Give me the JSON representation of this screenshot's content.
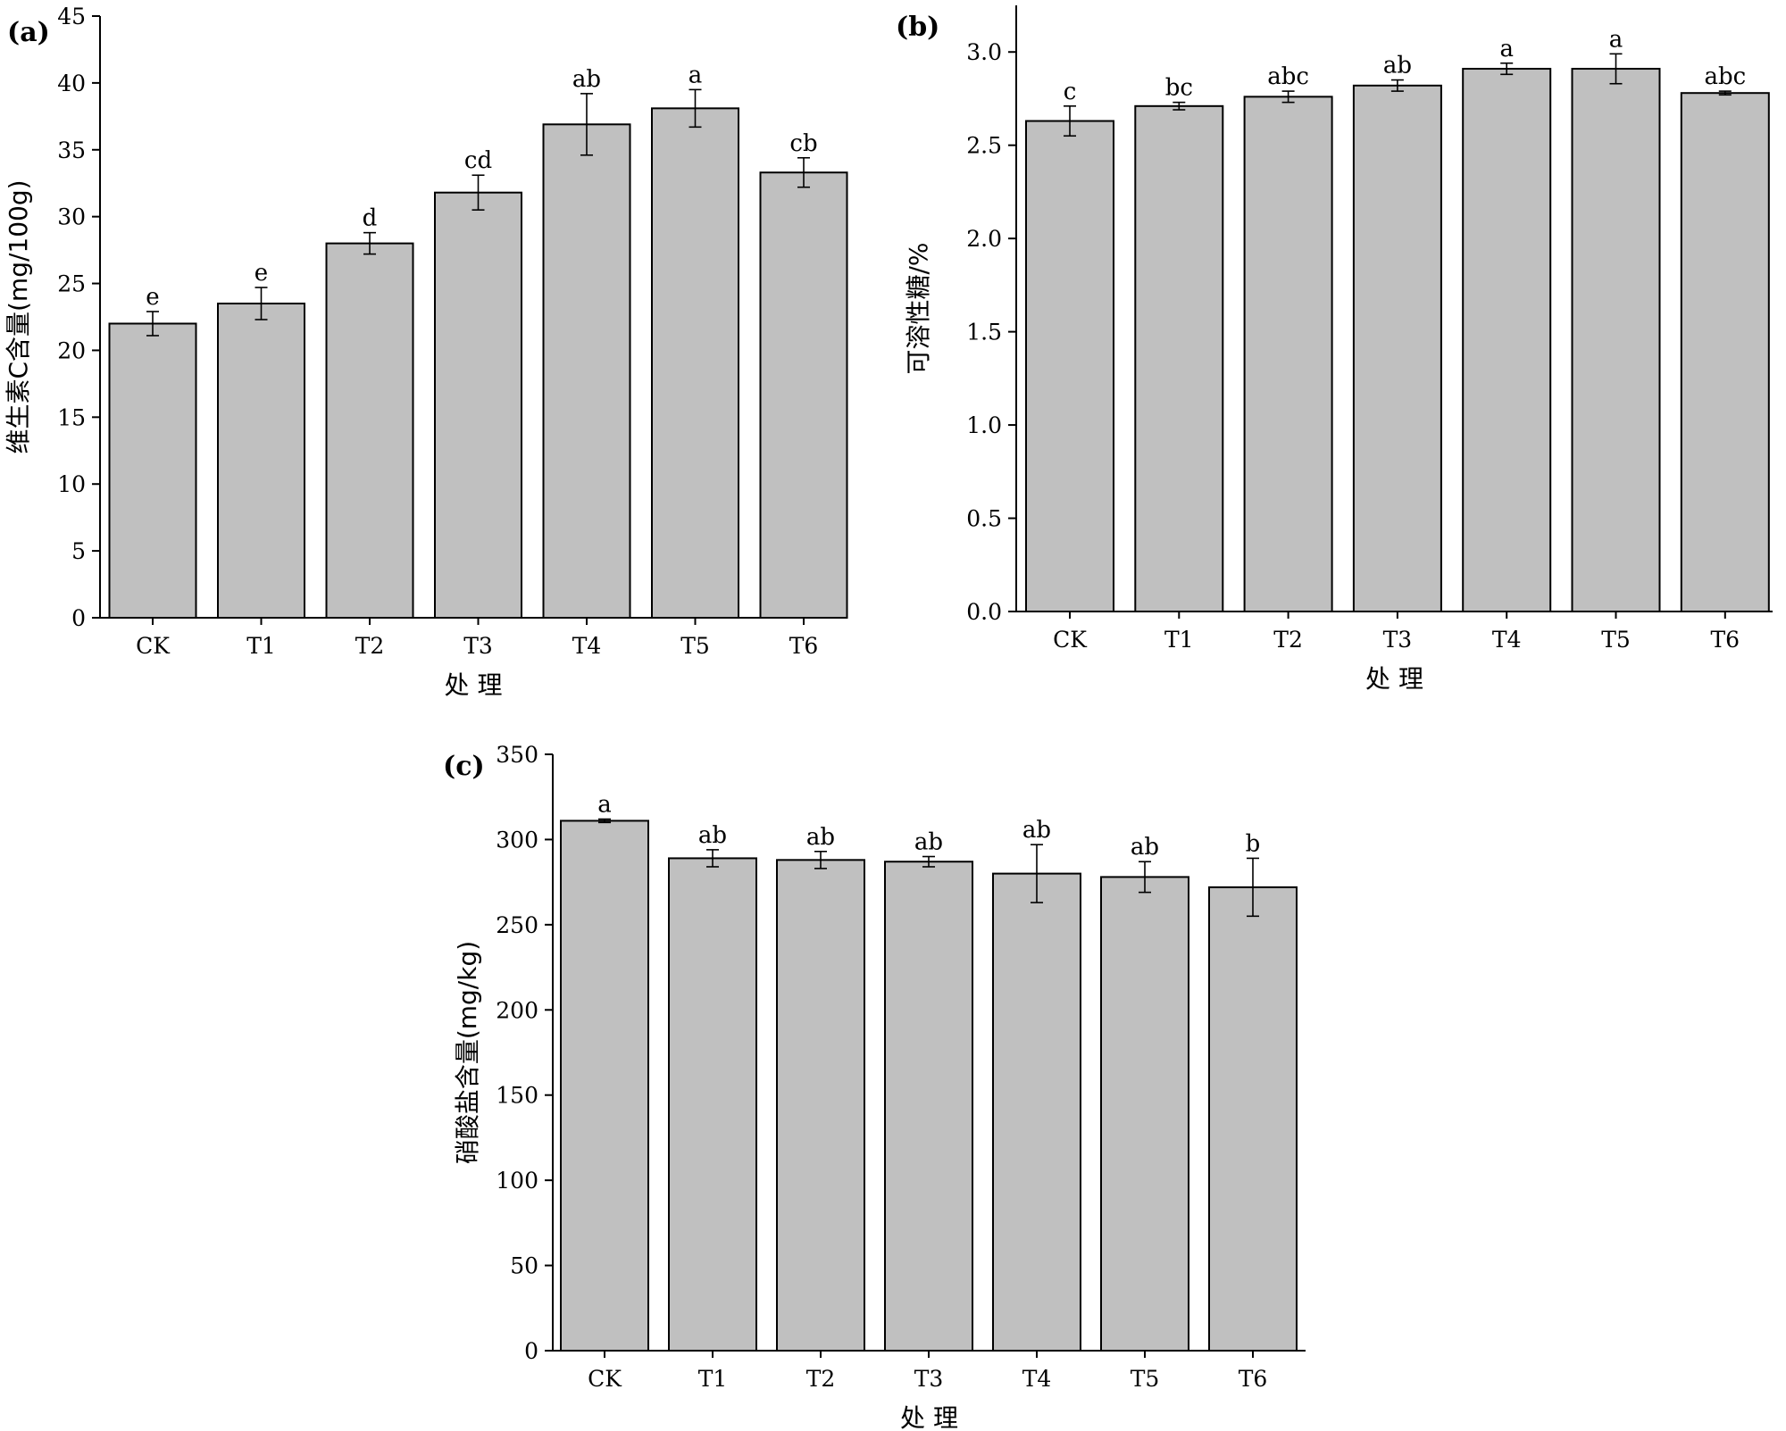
{
  "chart_data": [
    {
      "type": "bar",
      "panel_label": "(a)",
      "categories": [
        "CK",
        "T1",
        "T2",
        "T3",
        "T4",
        "T5",
        "T6"
      ],
      "values": [
        22.0,
        23.5,
        28.0,
        31.8,
        36.9,
        38.1,
        33.3
      ],
      "errors": [
        0.9,
        1.2,
        0.8,
        1.3,
        2.3,
        1.4,
        1.1
      ],
      "significance": [
        "e",
        "e",
        "d",
        "cd",
        "ab",
        "a",
        "cb"
      ],
      "xlabel": "处 理",
      "ylabel": "维生素C含量(mg/100g)",
      "ylim": [
        0,
        45
      ],
      "yticks": [
        0,
        5,
        10,
        15,
        20,
        25,
        30,
        35,
        40,
        45
      ],
      "ytick_labels": [
        "0",
        "5",
        "10",
        "15",
        "20",
        "25",
        "30",
        "35",
        "40",
        "45"
      ],
      "grid": false
    },
    {
      "type": "bar",
      "panel_label": "(b)",
      "categories": [
        "CK",
        "T1",
        "T2",
        "T3",
        "T4",
        "T5",
        "T6"
      ],
      "values": [
        2.63,
        2.71,
        2.76,
        2.82,
        2.91,
        2.91,
        2.78
      ],
      "errors": [
        0.08,
        0.02,
        0.03,
        0.03,
        0.03,
        0.08,
        0.01
      ],
      "significance": [
        "c",
        "bc",
        "abc",
        "ab",
        "a",
        "a",
        "abc"
      ],
      "xlabel": "处 理",
      "ylabel": "可溶性糖/%",
      "ylim": [
        0,
        3.25
      ],
      "yticks": [
        0,
        0.5,
        1.0,
        1.5,
        2.0,
        2.5,
        3.0
      ],
      "ytick_labels": [
        "0.0",
        "0.5",
        "1.0",
        "1.5",
        "2.0",
        "2.5",
        "3.0"
      ],
      "grid": false
    },
    {
      "type": "bar",
      "panel_label": "(c)",
      "categories": [
        "CK",
        "T1",
        "T2",
        "T3",
        "T4",
        "T5",
        "T6"
      ],
      "values": [
        311,
        289,
        288,
        287,
        280,
        278,
        272
      ],
      "errors": [
        1,
        5,
        5,
        3,
        17,
        9,
        17
      ],
      "significance": [
        "a",
        "ab",
        "ab",
        "ab",
        "ab",
        "ab",
        "b"
      ],
      "xlabel": "处 理",
      "ylabel": "硝酸盐含量(mg/kg)",
      "ylim": [
        0,
        350
      ],
      "yticks": [
        0,
        50,
        100,
        150,
        200,
        250,
        300,
        350
      ],
      "ytick_labels": [
        "0",
        "50",
        "100",
        "150",
        "200",
        "250",
        "300",
        "350"
      ],
      "grid": false
    }
  ]
}
